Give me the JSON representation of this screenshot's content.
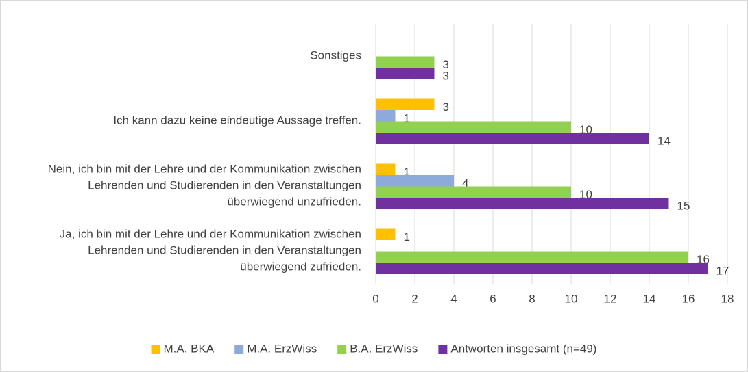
{
  "chart_data": {
    "type": "hbar",
    "categories": [
      "Sonstiges",
      "Ich kann dazu keine eindeutige Aussage treffen.",
      "Nein, ich bin mit der Lehre und der Kommunikation zwischen Lehrenden und Studierenden in den Veranstaltungen überwiegend unzufrieden.",
      "Ja, ich bin mit der Lehre und der Kommunikation zwischen Lehrenden und Studierenden in den Veranstaltungen überwiegend zufrieden."
    ],
    "series": [
      {
        "name": "M.A. BKA",
        "color": "#ffc000",
        "values": [
          null,
          3,
          1,
          1
        ]
      },
      {
        "name": "M.A. ErzWiss",
        "color": "#8eaadb",
        "values": [
          null,
          1,
          4,
          null
        ]
      },
      {
        "name": "B.A. ErzWiss",
        "color": "#92d050",
        "values": [
          3,
          10,
          10,
          16
        ]
      },
      {
        "name": "Antworten insgesamt (n=49)",
        "color": "#7030a0",
        "values": [
          3,
          14,
          15,
          17
        ]
      }
    ],
    "xlim": [
      0,
      18
    ],
    "xticks": [
      0,
      2,
      4,
      6,
      8,
      10,
      12,
      14,
      16,
      18
    ],
    "grid": true,
    "legend": "bottom"
  }
}
